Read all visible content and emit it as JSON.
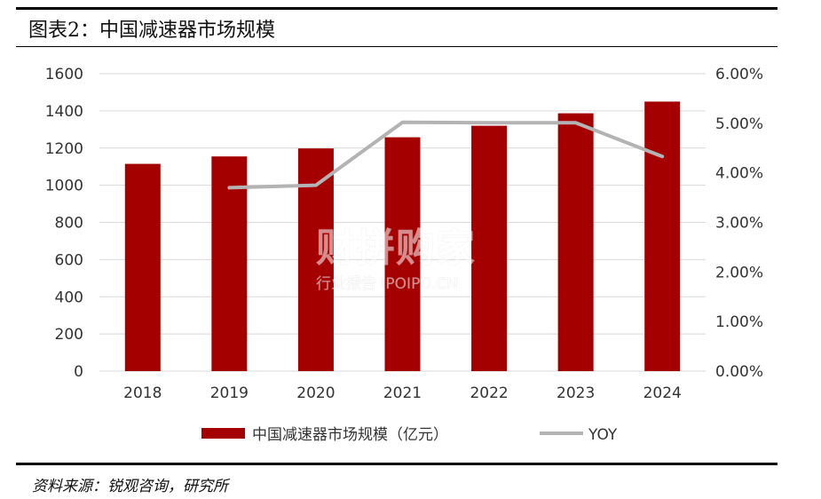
{
  "header": {
    "title": "图表2：中国减速器市场规模"
  },
  "footer": {
    "source": "资料来源：锐观咨询，研究所"
  },
  "watermark": {
    "main": "财拼购家",
    "sub": "行业报告 IPOIPO.CN"
  },
  "colors": {
    "bar": "#a50000",
    "line": "#b3b3b3",
    "grid": "#d9d9d9"
  },
  "chart_data": {
    "type": "bar",
    "title": "",
    "categories": [
      "2018",
      "2019",
      "2020",
      "2021",
      "2022",
      "2023",
      "2024"
    ],
    "series": [
      {
        "name": "中国减速器市场规模（亿元）",
        "type": "bar",
        "axis": "left",
        "values": [
          1115,
          1155,
          1198,
          1258,
          1320,
          1387,
          1450
        ]
      },
      {
        "name": "YOY",
        "type": "line",
        "axis": "right",
        "values": [
          null,
          3.7,
          3.75,
          5.02,
          5.01,
          5.01,
          4.33
        ]
      }
    ],
    "yleft": {
      "min": 0,
      "max": 1600,
      "ticks": [
        "0",
        "200",
        "400",
        "600",
        "800",
        "1000",
        "1200",
        "1400",
        "1600"
      ]
    },
    "yright": {
      "min": 0,
      "max": 6,
      "ticks": [
        "0.00%",
        "1.00%",
        "2.00%",
        "3.00%",
        "4.00%",
        "5.00%",
        "6.00%"
      ]
    },
    "grid": true,
    "legend": "bottom"
  }
}
